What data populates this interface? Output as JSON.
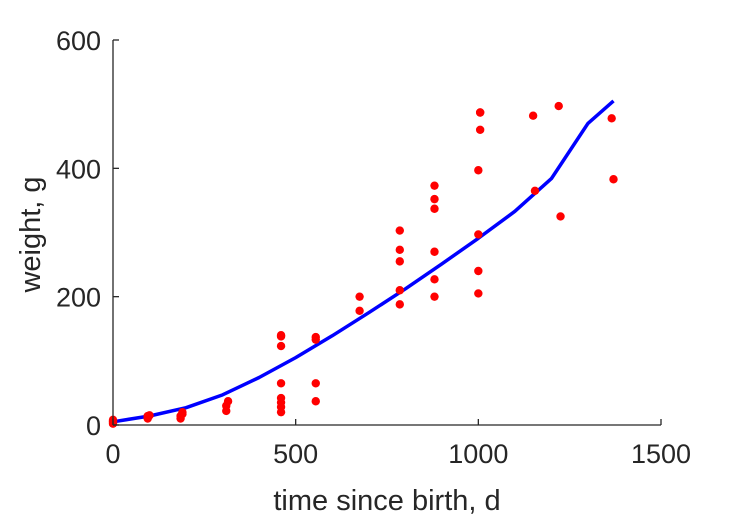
{
  "chart_data": {
    "type": "scatter",
    "title": "",
    "xlabel": "time since birth, d",
    "ylabel": "weight, g",
    "xlim": [
      0,
      1500
    ],
    "ylim": [
      0,
      600
    ],
    "xticks": [
      0,
      500,
      1000,
      1500
    ],
    "yticks": [
      0,
      200,
      400,
      600
    ],
    "grid": false,
    "colors": {
      "points": "#ff0000",
      "fit": "#0000ff",
      "axis": "#262626"
    },
    "series": [
      {
        "kind": "points",
        "x": [
          0,
          0,
          0,
          0,
          95,
          95,
          95,
          100,
          185,
          185,
          190,
          190,
          310,
          310,
          315,
          460,
          460,
          460,
          460,
          460,
          460,
          460,
          460,
          555,
          555,
          555,
          555,
          675,
          675,
          785,
          785,
          785,
          785,
          785,
          880,
          880,
          880,
          880,
          880,
          880,
          1000,
          1000,
          1000,
          1000,
          1005,
          1005,
          1005,
          1150,
          1155,
          1220,
          1225,
          1365,
          1370
        ],
        "y": [
          2,
          4,
          6,
          8,
          10,
          12,
          14,
          15,
          10,
          14,
          17,
          20,
          22,
          30,
          37,
          20,
          28,
          35,
          42,
          65,
          123,
          138,
          140,
          37,
          65,
          133,
          137,
          178,
          200,
          188,
          210,
          255,
          273,
          303,
          200,
          227,
          270,
          337,
          352,
          373,
          205,
          240,
          297,
          397,
          460,
          487,
          487,
          482,
          365,
          497,
          325,
          478,
          383
        ]
      },
      {
        "kind": "fit-line",
        "x": [
          0,
          100,
          200,
          300,
          400,
          500,
          600,
          700,
          800,
          900,
          1000,
          1100,
          1200,
          1300,
          1370
        ],
        "y": [
          5,
          14,
          27,
          47,
          74,
          105,
          139,
          175,
          212,
          251,
          291,
          333,
          384,
          470,
          505
        ]
      }
    ]
  }
}
